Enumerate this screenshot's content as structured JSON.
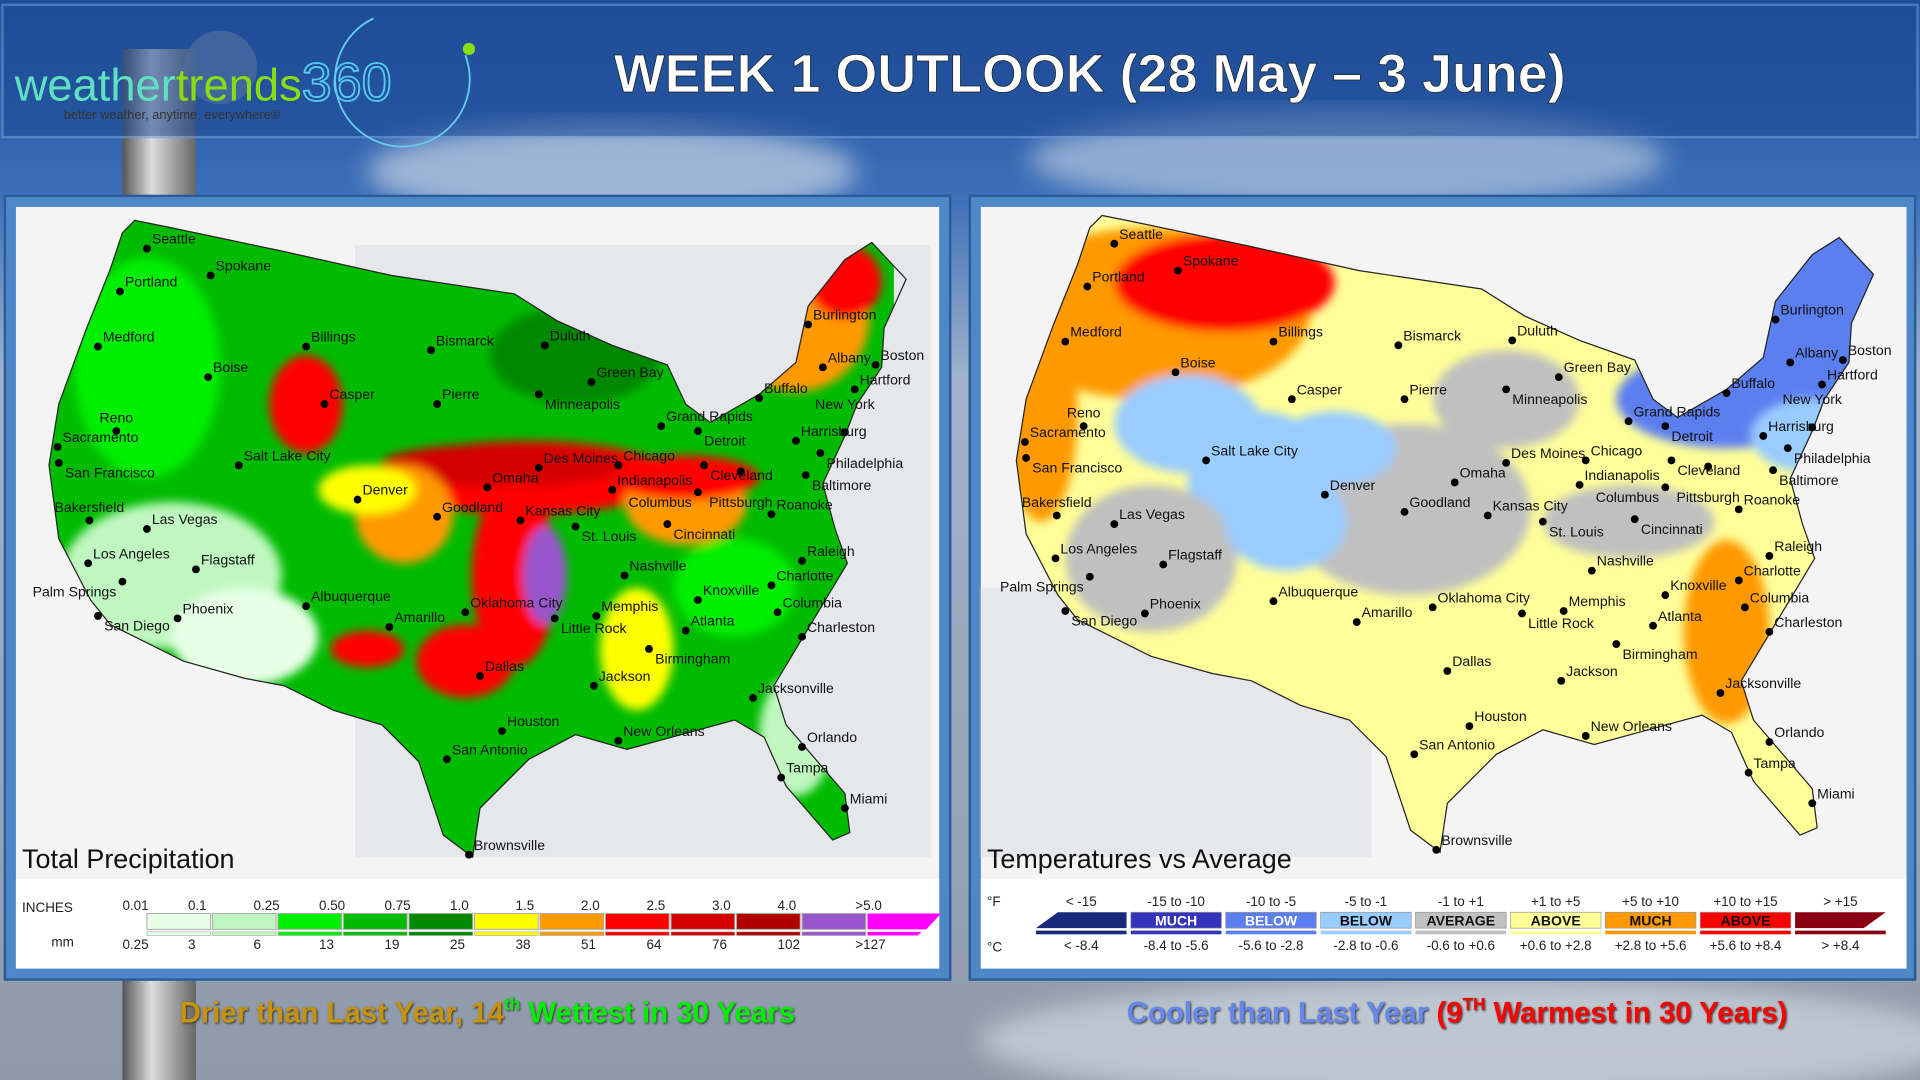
{
  "logo": {
    "text_a": "weather",
    "text_b": "trends",
    "text_c": "360",
    "tagline": "better weather, anytime, everywhere®"
  },
  "title": "WEEK 1 OUTLOOK (28 May – 3 June)",
  "precip_panel": {
    "label": "Total Precipitation",
    "legend": {
      "inches_label": "INCHES",
      "mm_label": "mm",
      "inches": [
        "0.01",
        "0.1",
        "0.25",
        "0.50",
        "0.75",
        "1.0",
        "1.5",
        "2.0",
        "2.5",
        "3.0",
        "4.0",
        ">5.0"
      ],
      "mm": [
        "0.25",
        "3",
        "6",
        "13",
        "19",
        "25",
        "38",
        "51",
        "64",
        "76",
        "102",
        ">127"
      ],
      "colors": [
        "#e6ffe6",
        "#c0f7c0",
        "#00ee00",
        "#00bb00",
        "#008800",
        "#ffff00",
        "#ff9900",
        "#ff0000",
        "#d40000",
        "#b00000",
        "#9955cc",
        "#ff00ff"
      ]
    },
    "caption_a": "Drier than Last Year, 14",
    "caption_sup": "th",
    "caption_b": " Wettest in 30 Years",
    "caption_colors": {
      "a": "#c8920a",
      "b": "#00ee00"
    }
  },
  "temp_panel": {
    "label": "Temperatures vs Average",
    "legend": {
      "f_label": "°F",
      "c_label": "°C",
      "f_ranges": [
        "< -15",
        "-15 to -10",
        "-10 to -5",
        "-5 to -1",
        "-1 to +1",
        "+1 to +5",
        "+5 to +10",
        "+10 to +15",
        "> +15"
      ],
      "c_ranges": [
        "< -8.4",
        "-8.4 to -5.6",
        "-5.6 to -2.8",
        "-2.8 to -0.6",
        "-0.6 to +0.6",
        "+0.6 to +2.8",
        "+2.8 to +5.6",
        "+5.6 to +8.4",
        "> +8.4"
      ],
      "box_labels": [
        "",
        "MUCH",
        "BELOW",
        "BELOW",
        "AVERAGE",
        "ABOVE",
        "MUCH",
        "ABOVE",
        ""
      ],
      "colors": [
        "#1a2a7a",
        "#3333bb",
        "#5b7ff0",
        "#99ccff",
        "#c0c0c0",
        "#ffff99",
        "#ff9900",
        "#ff0000",
        "#880011"
      ]
    },
    "caption_a": "Cooler than Last Year ",
    "caption_b": "(9",
    "caption_sup": "TH",
    "caption_c": " Warmest in 30 Years)",
    "caption_colors": {
      "a": "#6688ee",
      "b": "#ff0000"
    }
  },
  "cities": [
    "Seattle",
    "Spokane",
    "Portland",
    "Medford",
    "Boise",
    "Billings",
    "Bismarck",
    "Duluth",
    "Green Bay",
    "Minneapolis",
    "Pierre",
    "Casper",
    "Sacramento",
    "Reno",
    "San Francisco",
    "Salt Lake City",
    "Denver",
    "Goodland",
    "Omaha",
    "Des Moines",
    "Chicago",
    "Grand Rapids",
    "Detroit",
    "Cleveland",
    "Pittsburgh",
    "Harrisburg",
    "Buffalo",
    "Albany",
    "Burlington",
    "Boston",
    "Hartford",
    "New York",
    "Philadelphia",
    "Baltimore",
    "Indianapolis",
    "Columbus",
    "Cincinnati",
    "St. Louis",
    "Kansas City",
    "Roanoke",
    "Raleigh",
    "Charlotte",
    "Columbia",
    "Charleston",
    "Atlanta",
    "Knoxville",
    "Nashville",
    "Memphis",
    "Little Rock",
    "Oklahoma City",
    "Amarillo",
    "Albuquerque",
    "Flagstaff",
    "Phoenix",
    "Las Vegas",
    "Bakersfield",
    "Los Angeles",
    "Palm Springs",
    "San Diego",
    "Dallas",
    "Birmingham",
    "Jackson",
    "New Orleans",
    "Houston",
    "San Antonio",
    "Jacksonville",
    "Orlando",
    "Tampa",
    "Miami",
    "Brownsville"
  ]
}
